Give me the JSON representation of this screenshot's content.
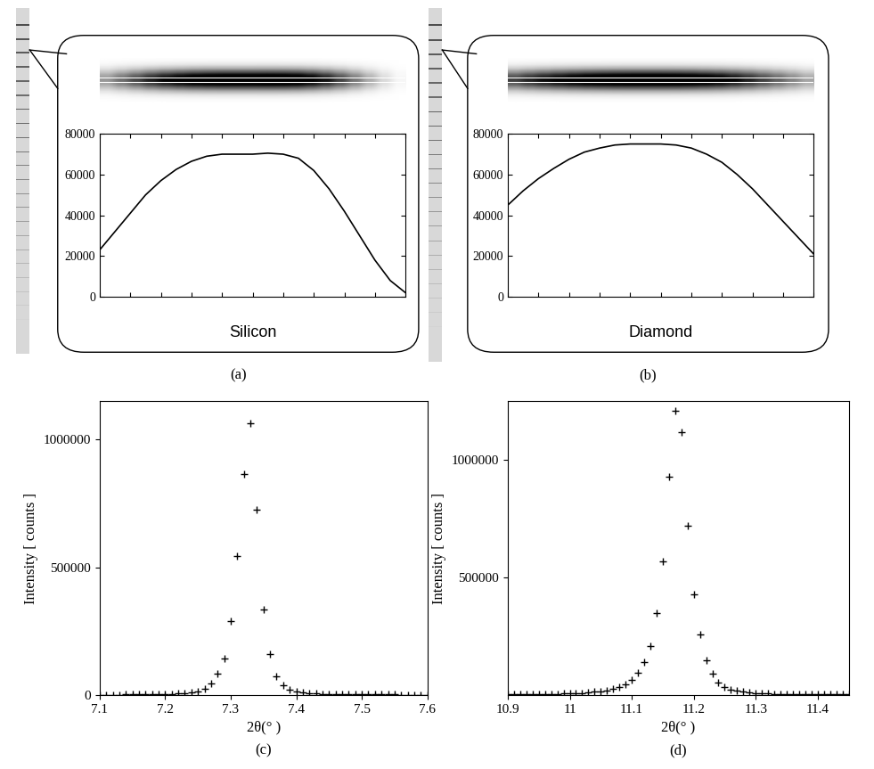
{
  "chart_data": [
    {
      "type": "line",
      "title": "Silicon",
      "caption": "(a)",
      "color": "#000000",
      "x": [
        0,
        5,
        10,
        15,
        20,
        25,
        30,
        35,
        40,
        45,
        50,
        55,
        60,
        65,
        70,
        75,
        80,
        85,
        90,
        95,
        100
      ],
      "values": [
        23000,
        32000,
        41000,
        50000,
        57000,
        62500,
        66500,
        69000,
        70000,
        70000,
        70000,
        70500,
        70000,
        68000,
        62000,
        53000,
        42000,
        30000,
        18000,
        8000,
        2000
      ],
      "xlim": [
        0,
        100
      ],
      "xticks": [
        0,
        10,
        20,
        30,
        40,
        50,
        60,
        70,
        80,
        90,
        100
      ],
      "ylim": [
        0,
        80000
      ],
      "yticks": [
        0,
        20000,
        40000,
        60000,
        80000
      ],
      "tick_labels": "y"
    },
    {
      "type": "line",
      "title": "Diamond",
      "caption": "(b)",
      "color": "#000000",
      "x": [
        0,
        5,
        10,
        15,
        20,
        25,
        30,
        35,
        40,
        45,
        50,
        55,
        60,
        65,
        70,
        75,
        80,
        85,
        90,
        95,
        100
      ],
      "values": [
        45000,
        52000,
        58000,
        63000,
        67500,
        71000,
        73000,
        74500,
        75000,
        75000,
        75000,
        74500,
        73000,
        70000,
        66000,
        60000,
        53000,
        45000,
        37000,
        29000,
        21000
      ],
      "xlim": [
        0,
        100
      ],
      "xticks": [
        0,
        10,
        20,
        30,
        40,
        50,
        60,
        70,
        80,
        90,
        100
      ],
      "ylim": [
        0,
        80000
      ],
      "yticks": [
        0,
        20000,
        40000,
        60000,
        80000
      ],
      "tick_labels": "y"
    },
    {
      "type": "scatter",
      "caption": "(c)",
      "x_label": "2θ(° )",
      "y_label": "Intensity [ counts ]",
      "color": "#000000",
      "marker": "+",
      "x": [
        7.1,
        7.11,
        7.12,
        7.13,
        7.14,
        7.15,
        7.16,
        7.17,
        7.18,
        7.19,
        7.2,
        7.21,
        7.22,
        7.23,
        7.24,
        7.25,
        7.26,
        7.27,
        7.28,
        7.29,
        7.3,
        7.31,
        7.32,
        7.33,
        7.34,
        7.35,
        7.36,
        7.37,
        7.38,
        7.39,
        7.4,
        7.41,
        7.42,
        7.43,
        7.44,
        7.45,
        7.46,
        7.47,
        7.48,
        7.49,
        7.5,
        7.51,
        7.52,
        7.53,
        7.54,
        7.55,
        7.56,
        7.57,
        7.58,
        7.59,
        7.6
      ],
      "values": [
        2000,
        2000,
        2000,
        2000,
        2500,
        2500,
        3000,
        3000,
        3500,
        4000,
        4500,
        5000,
        6000,
        8000,
        10000,
        15000,
        25000,
        45000,
        85000,
        145000,
        290000,
        545000,
        865000,
        1065000,
        725000,
        335000,
        160000,
        75000,
        40000,
        22000,
        14000,
        10000,
        8000,
        6500,
        5500,
        5000,
        4500,
        4000,
        3500,
        3500,
        3000,
        3000,
        3000,
        2500,
        2500,
        2500,
        2000,
        2000,
        2000,
        2000,
        2000
      ],
      "xlim": [
        7.1,
        7.6
      ],
      "xticks": [
        7.1,
        7.2,
        7.3,
        7.4,
        7.5,
        7.6
      ],
      "ylim": [
        0,
        1150000
      ],
      "yticks": [
        0,
        500000,
        1000000
      ]
    },
    {
      "type": "scatter",
      "caption": "(d)",
      "x_label": "2θ(° )",
      "y_label": "Intensity [ counts ]",
      "color": "#000000",
      "marker": "+",
      "x": [
        10.9,
        10.91,
        10.92,
        10.93,
        10.94,
        10.95,
        10.96,
        10.97,
        10.98,
        10.99,
        11.0,
        11.01,
        11.02,
        11.03,
        11.04,
        11.05,
        11.06,
        11.07,
        11.08,
        11.09,
        11.1,
        11.11,
        11.12,
        11.13,
        11.14,
        11.15,
        11.16,
        11.17,
        11.18,
        11.19,
        11.2,
        11.21,
        11.22,
        11.23,
        11.24,
        11.25,
        11.26,
        11.27,
        11.28,
        11.29,
        11.3,
        11.31,
        11.32,
        11.33,
        11.34,
        11.35,
        11.36,
        11.37,
        11.38,
        11.39,
        11.4,
        11.41,
        11.42,
        11.43,
        11.44,
        11.45
      ],
      "values": [
        3000,
        3000,
        3500,
        3500,
        4000,
        4500,
        5000,
        5500,
        6000,
        7000,
        8000,
        9000,
        10000,
        12000,
        14000,
        17000,
        21000,
        27000,
        35000,
        47000,
        65000,
        95000,
        140000,
        210000,
        350000,
        570000,
        930000,
        1210000,
        1120000,
        720000,
        430000,
        260000,
        150000,
        90000,
        55000,
        35000,
        25000,
        18000,
        14000,
        11000,
        9000,
        8000,
        7000,
        6000,
        5500,
        5000,
        4500,
        4500,
        4000,
        4000,
        3500,
        3500,
        3000,
        3000,
        3000,
        3000
      ],
      "xlim": [
        10.9,
        11.45
      ],
      "xticks": [
        10.9,
        11,
        11.1,
        11.2,
        11.3,
        11.4
      ],
      "ylim": [
        0,
        1250000
      ],
      "yticks": [
        500000,
        1000000
      ]
    }
  ]
}
